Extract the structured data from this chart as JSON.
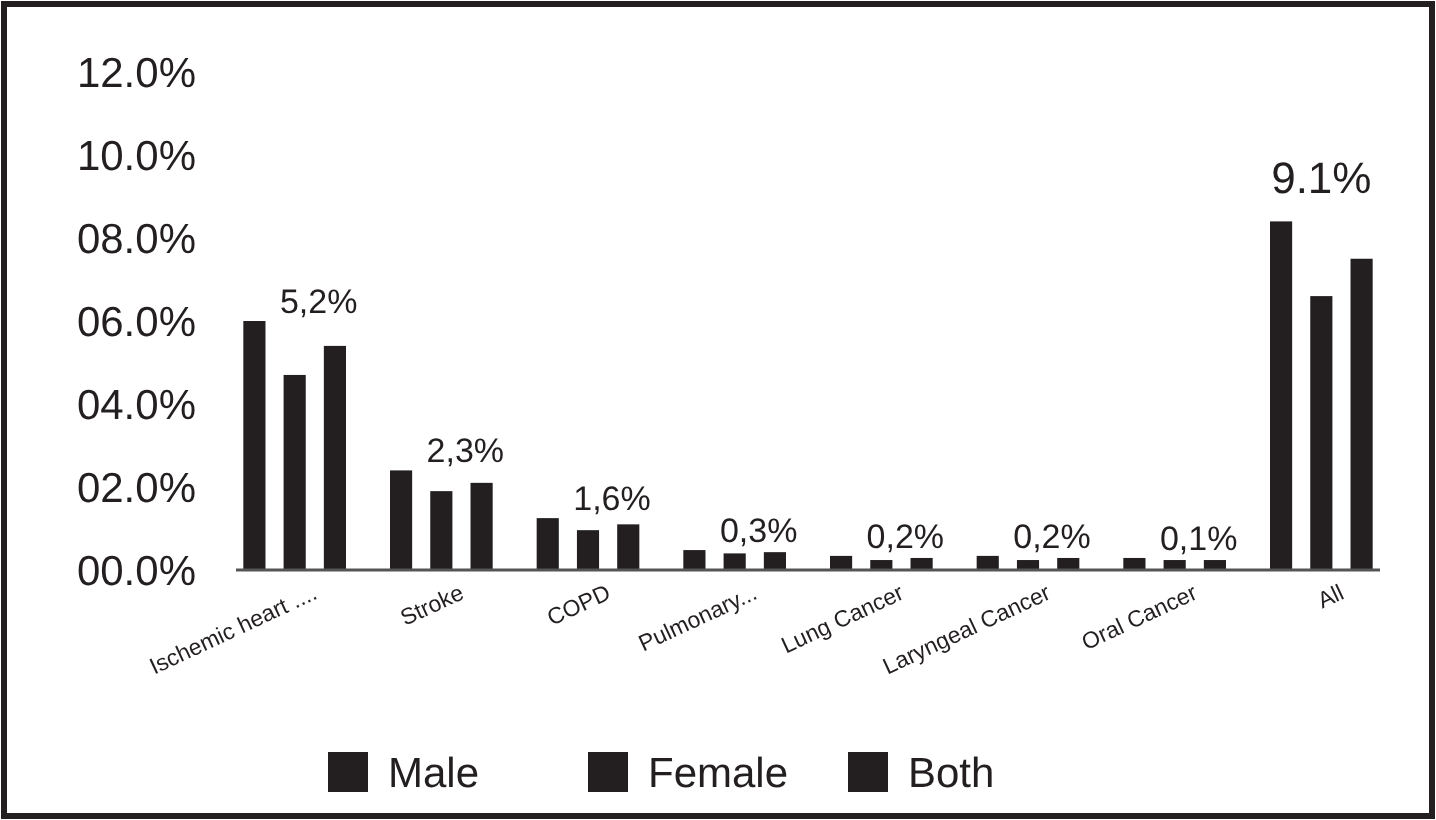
{
  "chart_data": {
    "type": "bar",
    "categories": [
      "Ischemic heart ....",
      "Stroke",
      "COPD",
      "Pulmonary...",
      "Lung Cancer",
      "Laryngeal Cancer",
      "Oral Cancer",
      "All"
    ],
    "series": [
      {
        "name": "Male",
        "color": "#231f20",
        "values": [
          6.0,
          2.4,
          1.25,
          0.48,
          0.34,
          0.34,
          0.29,
          8.4
        ]
      },
      {
        "name": "Female",
        "color": "#231f20",
        "values": [
          4.7,
          1.9,
          0.96,
          0.4,
          0.24,
          0.24,
          0.24,
          6.6
        ]
      },
      {
        "name": "Both",
        "color": "#231f20",
        "values": [
          5.4,
          2.1,
          1.1,
          0.43,
          0.29,
          0.29,
          0.24,
          7.5
        ]
      }
    ],
    "ylim": [
      0,
      12
    ],
    "yticks": [
      {
        "value": 0,
        "label": "00.0%"
      },
      {
        "value": 2,
        "label": "02.0%"
      },
      {
        "value": 4,
        "label": "04.0%"
      },
      {
        "value": 6,
        "label": "06.0%"
      },
      {
        "value": 8,
        "label": "08.0%"
      },
      {
        "value": 10,
        "label": "10.0%"
      },
      {
        "value": 12,
        "label": "12.0%"
      }
    ],
    "annotations": [
      "5,2%",
      "2,3%",
      "1,6%",
      "0,3%",
      "0,2%",
      "0,2%",
      "0,1%",
      "9.1%"
    ],
    "grid": false,
    "legend": "bottom"
  }
}
